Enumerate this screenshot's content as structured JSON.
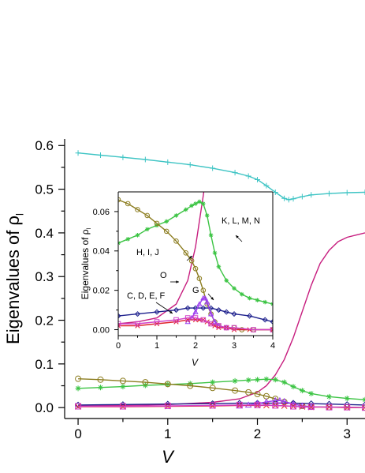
{
  "chart_data": [
    {
      "panel": "main",
      "type": "line",
      "xlabel": "V",
      "ylabel": "Eigenvalues of ρ",
      "ylabel_sub": "l",
      "xlim": [
        -0.15,
        3.2
      ],
      "ylim": [
        -0.025,
        0.615
      ],
      "xticks": [
        "0",
        "1",
        "2",
        "3"
      ],
      "yticks": [
        "0.0",
        "0.1",
        "0.2",
        "0.3",
        "0.4",
        "0.5",
        "0.6"
      ],
      "series": [
        {
          "color": "#3ec4c4",
          "marker": "plus",
          "x": [
            0,
            0.25,
            0.5,
            0.75,
            1.0,
            1.25,
            1.5,
            1.75,
            1.9,
            2.0,
            2.1,
            2.2,
            2.3,
            2.35,
            2.4,
            2.5,
            2.6,
            2.8,
            3.0,
            3.2
          ],
          "y": [
            0.583,
            0.578,
            0.573,
            0.568,
            0.562,
            0.556,
            0.548,
            0.538,
            0.53,
            0.522,
            0.508,
            0.493,
            0.479,
            0.476,
            0.478,
            0.483,
            0.487,
            0.49,
            0.492,
            0.493
          ]
        },
        {
          "color": "#c71e7f",
          "marker": "none",
          "x": [
            0,
            0.5,
            1.0,
            1.5,
            1.8,
            2.0,
            2.1,
            2.2,
            2.3,
            2.4,
            2.5,
            2.6,
            2.7,
            2.8,
            2.9,
            3.0,
            3.1,
            3.2
          ],
          "y": [
            0.004,
            0.005,
            0.007,
            0.012,
            0.02,
            0.035,
            0.05,
            0.075,
            0.11,
            0.16,
            0.22,
            0.28,
            0.33,
            0.36,
            0.38,
            0.39,
            0.395,
            0.4
          ]
        },
        {
          "color": "#3cc444",
          "marker": "asterisk",
          "x": [
            0,
            0.25,
            0.5,
            0.75,
            1.0,
            1.25,
            1.5,
            1.75,
            1.9,
            2.0,
            2.1,
            2.2,
            2.3,
            2.4,
            2.5,
            2.6,
            2.8,
            3.0,
            3.2
          ],
          "y": [
            0.044,
            0.046,
            0.048,
            0.051,
            0.053,
            0.055,
            0.058,
            0.061,
            0.063,
            0.064,
            0.065,
            0.064,
            0.058,
            0.048,
            0.039,
            0.032,
            0.025,
            0.021,
            0.018
          ]
        },
        {
          "color": "#8c7d20",
          "marker": "circle",
          "x": [
            0,
            0.25,
            0.5,
            0.75,
            1.0,
            1.25,
            1.5,
            1.75,
            1.9,
            2.0,
            2.1,
            2.2,
            2.3,
            2.4,
            2.5,
            2.6,
            2.8,
            3.0,
            3.2
          ],
          "y": [
            0.066,
            0.064,
            0.061,
            0.058,
            0.054,
            0.05,
            0.045,
            0.039,
            0.035,
            0.031,
            0.026,
            0.02,
            0.013,
            0.008,
            0.004,
            0.002,
            0.001,
            0.001,
            0.0
          ]
        },
        {
          "color": "#1c1f8c",
          "marker": "diamond",
          "x": [
            0,
            0.5,
            1.0,
            1.5,
            1.8,
            2.0,
            2.2,
            2.4,
            2.6,
            2.8,
            3.0,
            3.2
          ],
          "y": [
            0.006,
            0.007,
            0.008,
            0.009,
            0.01,
            0.01,
            0.01,
            0.01,
            0.009,
            0.008,
            0.007,
            0.006
          ]
        },
        {
          "color": "#9b3cf0",
          "marker": "triangle",
          "x": [
            1.8,
            1.9,
            2.0,
            2.1,
            2.2,
            2.25,
            2.3,
            2.4,
            2.5,
            2.6
          ],
          "y": [
            0.004,
            0.006,
            0.009,
            0.013,
            0.016,
            0.016,
            0.014,
            0.008,
            0.004,
            0.002
          ]
        },
        {
          "color": "#e0242c",
          "marker": "cross",
          "x": [
            0,
            0.5,
            1.0,
            1.5,
            1.8,
            2.0,
            2.1,
            2.2,
            2.3,
            2.4,
            2.5,
            2.6,
            2.8,
            3.0,
            3.2
          ],
          "y": [
            0.002,
            0.002,
            0.003,
            0.004,
            0.005,
            0.005,
            0.005,
            0.005,
            0.004,
            0.003,
            0.002,
            0.001,
            0.001,
            0.0,
            0.0
          ]
        },
        {
          "color": "#d040c8",
          "marker": "square",
          "x": [
            0,
            0.5,
            1.0,
            1.5,
            1.8,
            2.0,
            2.2,
            2.4,
            2.6,
            2.8,
            3.0,
            3.2
          ],
          "y": [
            0.003,
            0.003,
            0.004,
            0.005,
            0.006,
            0.006,
            0.005,
            0.003,
            0.002,
            0.001,
            0.001,
            0.0
          ]
        }
      ]
    },
    {
      "panel": "inset",
      "type": "line",
      "xlabel": "V",
      "ylabel": "Eigenvalues of ρ",
      "ylabel_sub": "l",
      "xlim": [
        0,
        4
      ],
      "ylim": [
        -0.003,
        0.07
      ],
      "xticks": [
        "0",
        "1",
        "2",
        "3",
        "4"
      ],
      "yticks": [
        "0.00",
        "0.02",
        "0.04",
        "0.06"
      ],
      "annotations": [
        "K, L, M, N",
        "H, I, J",
        "O",
        "G",
        "C, D, E, F"
      ],
      "series": [
        {
          "color": "#c71e7f",
          "marker": "none",
          "x": [
            0,
            0.5,
            1.0,
            1.5,
            1.8,
            2.0,
            2.1,
            2.2,
            2.3
          ],
          "y": [
            0.003,
            0.004,
            0.006,
            0.013,
            0.025,
            0.042,
            0.055,
            0.068,
            0.082
          ]
        },
        {
          "color": "#3cc444",
          "marker": "asterisk",
          "x": [
            0,
            0.25,
            0.5,
            0.75,
            1.0,
            1.25,
            1.5,
            1.75,
            1.9,
            2.0,
            2.1,
            2.2,
            2.3,
            2.4,
            2.5,
            2.6,
            2.8,
            3.0,
            3.2,
            3.4,
            3.6,
            3.8,
            4.0
          ],
          "y": [
            0.044,
            0.046,
            0.048,
            0.051,
            0.053,
            0.055,
            0.058,
            0.061,
            0.063,
            0.064,
            0.065,
            0.064,
            0.058,
            0.048,
            0.039,
            0.032,
            0.025,
            0.021,
            0.018,
            0.016,
            0.015,
            0.014,
            0.013
          ]
        },
        {
          "color": "#8c7d20",
          "marker": "circle",
          "x": [
            0,
            0.25,
            0.5,
            0.75,
            1.0,
            1.25,
            1.5,
            1.75,
            1.9,
            2.0,
            2.1,
            2.2,
            2.3,
            2.4,
            2.5,
            2.6,
            2.8,
            3.0,
            3.2,
            3.5,
            4.0
          ],
          "y": [
            0.066,
            0.064,
            0.061,
            0.058,
            0.054,
            0.05,
            0.045,
            0.039,
            0.035,
            0.031,
            0.026,
            0.02,
            0.013,
            0.008,
            0.004,
            0.002,
            0.001,
            0.001,
            0.0,
            0.0,
            0.0
          ]
        },
        {
          "color": "#1c1f8c",
          "marker": "diamond",
          "x": [
            0,
            0.5,
            1.0,
            1.5,
            1.8,
            2.0,
            2.2,
            2.4,
            2.6,
            2.8,
            3.0,
            3.4,
            3.8,
            4.0
          ],
          "y": [
            0.007,
            0.008,
            0.009,
            0.01,
            0.011,
            0.011,
            0.011,
            0.011,
            0.01,
            0.009,
            0.008,
            0.007,
            0.005,
            0.004
          ]
        },
        {
          "color": "#9b3cf0",
          "marker": "triangle",
          "x": [
            1.8,
            1.9,
            2.0,
            2.1,
            2.2,
            2.25,
            2.3,
            2.4,
            2.5,
            2.6,
            2.8
          ],
          "y": [
            0.004,
            0.006,
            0.009,
            0.013,
            0.016,
            0.016,
            0.014,
            0.008,
            0.004,
            0.002,
            0.001
          ]
        },
        {
          "color": "#e0242c",
          "marker": "cross",
          "x": [
            0,
            0.5,
            1.0,
            1.5,
            1.8,
            2.0,
            2.1,
            2.2,
            2.3,
            2.4,
            2.5,
            2.6,
            2.8,
            3.0,
            3.4,
            4.0
          ],
          "y": [
            0.002,
            0.002,
            0.003,
            0.004,
            0.005,
            0.005,
            0.005,
            0.005,
            0.004,
            0.003,
            0.002,
            0.001,
            0.001,
            0.0,
            0.0,
            0.0
          ]
        },
        {
          "color": "#d040c8",
          "marker": "square",
          "x": [
            0,
            0.5,
            1.0,
            1.5,
            1.8,
            2.0,
            2.2,
            2.4,
            2.6,
            2.8,
            3.0,
            3.5,
            4.0
          ],
          "y": [
            0.003,
            0.003,
            0.004,
            0.005,
            0.006,
            0.006,
            0.005,
            0.003,
            0.002,
            0.001,
            0.001,
            0.0,
            0.0
          ]
        }
      ]
    }
  ]
}
